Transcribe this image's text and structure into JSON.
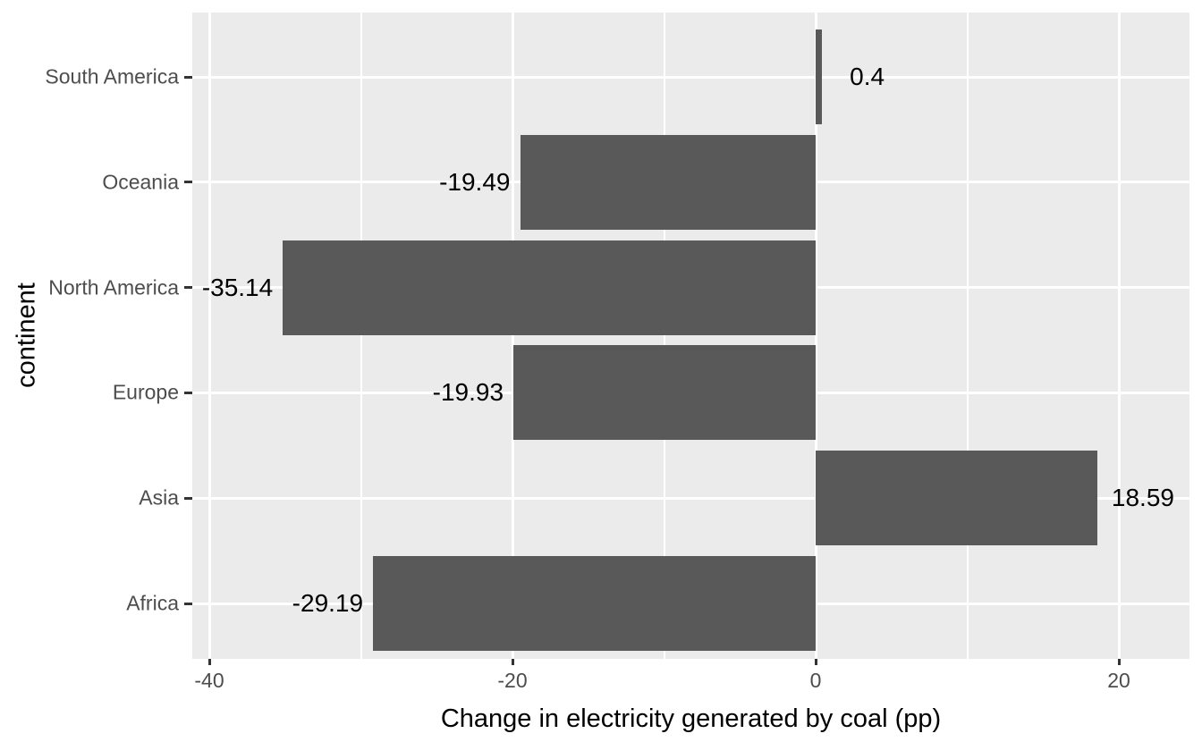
{
  "chart_data": {
    "type": "bar",
    "orientation": "horizontal",
    "title": "",
    "xlabel": "Change in electricity generated by coal (pp)",
    "ylabel": "continent",
    "categories_top_to_bottom": [
      "South America",
      "Oceania",
      "North America",
      "Europe",
      "Asia",
      "Africa"
    ],
    "values": [
      0.4,
      -19.49,
      -35.14,
      -19.93,
      18.59,
      -29.19
    ],
    "bar_labels": [
      "0.4",
      "-19.49",
      "-35.14",
      "-19.93",
      "18.59",
      "-29.19"
    ],
    "x_major_ticks": [
      -40,
      -20,
      0,
      20
    ],
    "x_tick_labels": [
      "-40",
      "-20",
      "0",
      "20"
    ],
    "x_minor_gridlines": [
      -30,
      -10,
      10
    ],
    "xlim": [
      -41.1,
      24.7
    ],
    "grid": "major-and-minor-white-on-gray",
    "legend": false,
    "label_offset_data_units": 3,
    "colors": {
      "bar_fill": "#595959",
      "panel_background": "#EBEBEB",
      "gridline": "#FFFFFF",
      "tick_label": "#4D4D4D",
      "axis_title": "#000000",
      "bar_label": "#000000",
      "tick_mark": "#333333",
      "outer_background": "#FFFFFF"
    }
  }
}
